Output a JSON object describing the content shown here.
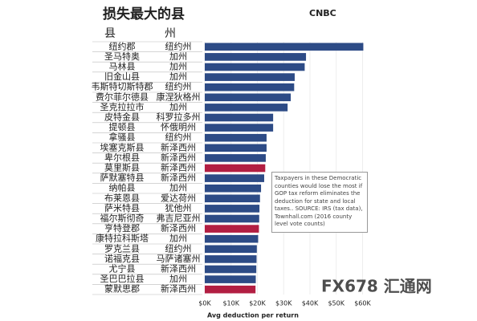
{
  "chart_data": {
    "type": "barh",
    "title": "损失最大的县",
    "logo": "CNBC",
    "column_headers": [
      "县",
      "州"
    ],
    "categories": [
      "纽约郡",
      "圣马特奥",
      "马林县",
      "旧金山县",
      "韦斯特切斯特郡",
      "费尔菲尔德县",
      "圣克拉拉市",
      "皮特金县",
      "提顿县",
      "拿骚县",
      "埃塞克斯县",
      "卑尔根县",
      "莫里斯县",
      "萨默塞特县",
      "纳帕县",
      "布莱恩县",
      "萨米特县",
      "福尔斯彻奇",
      "亨特登郡",
      "康特拉科斯塔",
      "罗克兰县",
      "诺福克县",
      "尤宁县",
      "圣巴巴拉县",
      "蒙默思郡"
    ],
    "states": [
      "纽约州",
      "加州",
      "加州",
      "加州",
      "纽约州",
      "康涅狄格州",
      "加州",
      "科罗拉多州",
      "怀俄明州",
      "纽约州",
      "新泽西州",
      "新泽西州",
      "新泽西州",
      "新泽西州",
      "加州",
      "爱达荷州",
      "犹他州",
      "弗吉尼亚州",
      "新泽西州",
      "加州",
      "纽约州",
      "马萨诸塞州",
      "新泽西州",
      "加州",
      "新泽西州"
    ],
    "values": [
      60.3,
      38.5,
      38,
      34.2,
      34,
      32.7,
      31.5,
      26,
      26,
      23.5,
      23.5,
      23.2,
      23,
      22.6,
      21.4,
      21,
      20.8,
      20.7,
      20.6,
      20.3,
      19.8,
      19.7,
      19.6,
      19.4,
      19.3
    ],
    "colors": [
      "#2d4b86",
      "#2d4b86",
      "#2d4b86",
      "#2d4b86",
      "#2d4b86",
      "#2d4b86",
      "#2d4b86",
      "#2d4b86",
      "#2d4b86",
      "#2d4b86",
      "#2d4b86",
      "#2d4b86",
      "#b21e42",
      "#2d4b86",
      "#2d4b86",
      "#2d4b86",
      "#2d4b86",
      "#2d4b86",
      "#b21e42",
      "#2d4b86",
      "#2d4b86",
      "#2d4b86",
      "#2d4b86",
      "#2d4b86",
      "#b21e42"
    ],
    "xlim": [
      0,
      62
    ],
    "xticks": [
      {
        "value": 0,
        "label": "$0K"
      },
      {
        "value": 10,
        "label": "$10K"
      },
      {
        "value": 20,
        "label": "$20K"
      },
      {
        "value": 30,
        "label": "$30K"
      },
      {
        "value": 40,
        "label": "$40K"
      },
      {
        "value": 50,
        "label": "$50K"
      },
      {
        "value": 60,
        "label": "$60K"
      }
    ],
    "xlabel": "Avg deduction per return",
    "annotation": "Taxpayers in these Democratic counties would lose the most if GOP tax reform eliminates the deduction for state and local taxes.. SOURCE: IRS (tax data), Townhall.com (2016 county level vote counts)",
    "watermark": "FX678 汇通网"
  }
}
